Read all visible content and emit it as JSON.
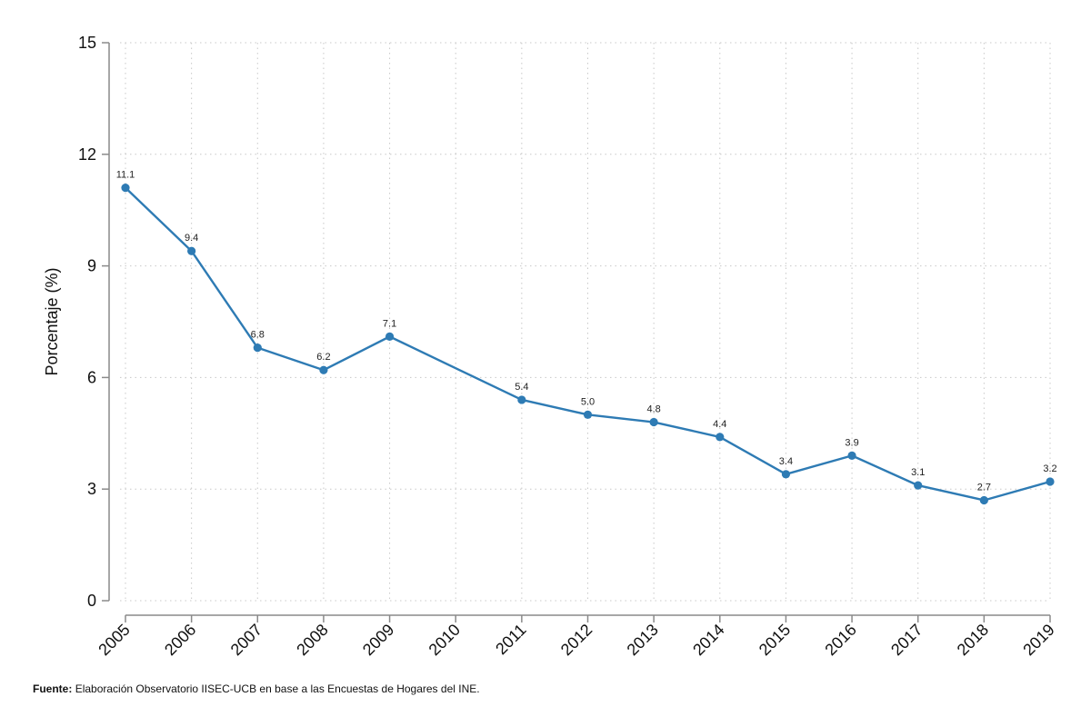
{
  "chart_data": {
    "type": "line",
    "title": "",
    "xlabel": "",
    "ylabel": "Porcentaje (%)",
    "x": [
      "2005",
      "2006",
      "2007",
      "2008",
      "2009",
      "2010",
      "2011",
      "2012",
      "2013",
      "2014",
      "2015",
      "2016",
      "2017",
      "2018",
      "2019"
    ],
    "ylim": [
      0,
      15
    ],
    "yticks": [
      "0",
      "3",
      "6",
      "9",
      "12",
      "15"
    ],
    "series": [
      {
        "values": [
          11.1,
          9.4,
          6.8,
          6.2,
          7.1,
          null,
          5.4,
          5.0,
          4.8,
          4.4,
          3.4,
          3.9,
          3.1,
          2.7,
          3.2
        ],
        "labels": [
          "11.1",
          "9.4",
          "6.8",
          "6.2",
          "7.1",
          null,
          "5.4",
          "5.0",
          "4.8",
          "4.4",
          "3.4",
          "3.9",
          "3.1",
          "2.7",
          "3.2"
        ],
        "color": "#2e7bb4"
      }
    ],
    "grid": true,
    "x_tick_rotation_deg": -45
  },
  "source": {
    "label": "Fuente:",
    "text": "Elaboración Observatorio IISEC-UCB en base a las Encuestas de Hogares del INE."
  }
}
